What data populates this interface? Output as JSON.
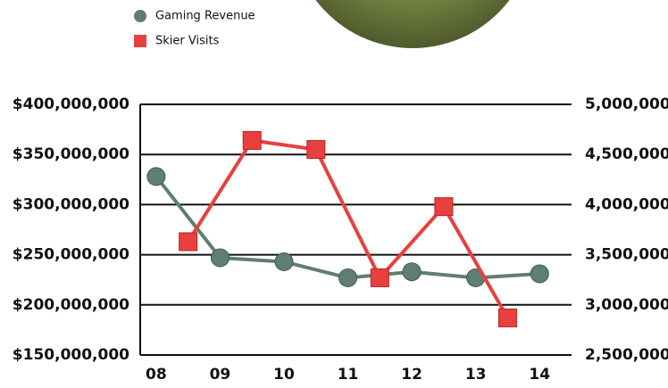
{
  "chart_data": {
    "type": "line",
    "x": [
      8,
      9,
      10,
      11,
      12,
      13,
      14
    ],
    "series": [
      {
        "name": "Gaming Revenue",
        "color": "#5f7f70",
        "marker": "circle",
        "x": [
          8,
          9,
          10,
          11,
          12,
          13,
          14
        ],
        "values": [
          328000000,
          247000000,
          243000000,
          227000000,
          233000000,
          227000000,
          231000000
        ]
      },
      {
        "name": "Skier Visits",
        "color": "#e8403f",
        "marker": "square",
        "axis": "y2",
        "x": [
          8.5,
          9.5,
          10.5,
          11.5,
          12.5,
          13.5
        ],
        "values": [
          3630000,
          4640000,
          4550000,
          3270000,
          3980000,
          2870000
        ]
      }
    ],
    "xlim": [
      7.75,
      14.5
    ],
    "xticks": [
      {
        "value": 8,
        "label": "08"
      },
      {
        "value": 9,
        "label": "09"
      },
      10,
      11,
      12,
      13,
      14
    ],
    "ylim": [
      150000000,
      400000000
    ],
    "yticks": [
      {
        "value": 150000000,
        "label": "$150,000,000"
      },
      {
        "value": 200000000,
        "label": "$200,000,000"
      },
      {
        "value": 250000000,
        "label": "$250,000,000"
      },
      {
        "value": 300000000,
        "label": "$300,000,000"
      },
      {
        "value": 350000000,
        "label": "$350,000,000"
      },
      {
        "value": 400000000,
        "label": "$400,000,000"
      }
    ],
    "y2lim": [
      2500000,
      5000000
    ],
    "y2ticks": [
      {
        "value": 2500000,
        "label": "2,500,000"
      },
      {
        "value": 3000000,
        "label": "3,000,000"
      },
      {
        "value": 3500000,
        "label": "3,500,000"
      },
      {
        "value": 4000000,
        "label": "4,000,000"
      },
      {
        "value": 4500000,
        "label": "4,500,000"
      },
      {
        "value": 5000000,
        "label": "5,000,000"
      }
    ],
    "grid": true,
    "legend": "top-left"
  }
}
